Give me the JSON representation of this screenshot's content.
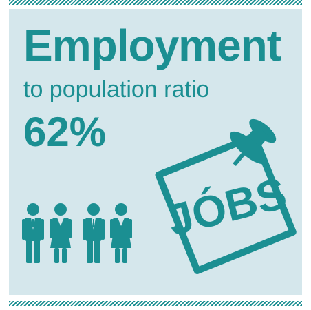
{
  "headline": {
    "title": "Employment",
    "subtitle": "to population ratio",
    "value": "62%"
  },
  "sign": {
    "text": "JÓBS"
  },
  "colors": {
    "accent": "#1b8f92",
    "panel": "#d5e7ec",
    "background": "#ffffff"
  },
  "icons": [
    "people-icon",
    "pushpin-icon",
    "note-icon"
  ]
}
